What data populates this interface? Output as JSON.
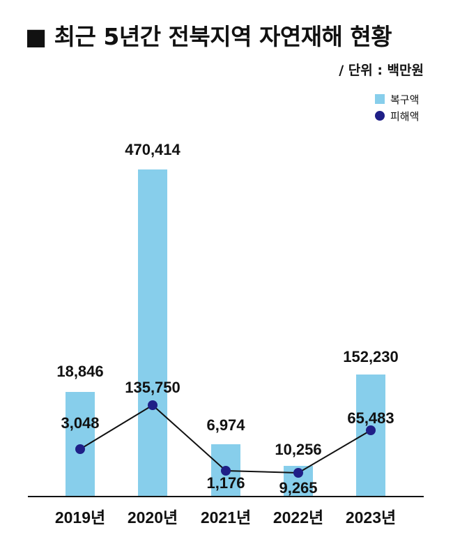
{
  "chart_data": {
    "type": "bar",
    "title": "■ 최근 5년간 전북지역 자연재해 현황",
    "unit": "/ 단위 : 백만원",
    "categories": [
      "2019년",
      "2020년",
      "2021년",
      "2022년",
      "2023년"
    ],
    "series": [
      {
        "name": "복구액",
        "type": "bar",
        "color": "#87CEEB",
        "values": [
          18846,
          470414,
          6974,
          10256,
          152230
        ],
        "labels": [
          "18,846",
          "470,414",
          "6,974",
          "10,256",
          "152,230"
        ]
      },
      {
        "name": "피해액",
        "type": "line",
        "color": "#1F1F87",
        "values": [
          3048,
          135750,
          1176,
          9265,
          65483
        ],
        "labels": [
          "3,048",
          "135,750",
          "1,176",
          "9,265",
          "65,483"
        ]
      }
    ],
    "legend_position": "top-right",
    "grid": false,
    "note": "복구액 막대와 피해액 선은 값에 비례하지 않는 표시 높이로 그려짐"
  }
}
